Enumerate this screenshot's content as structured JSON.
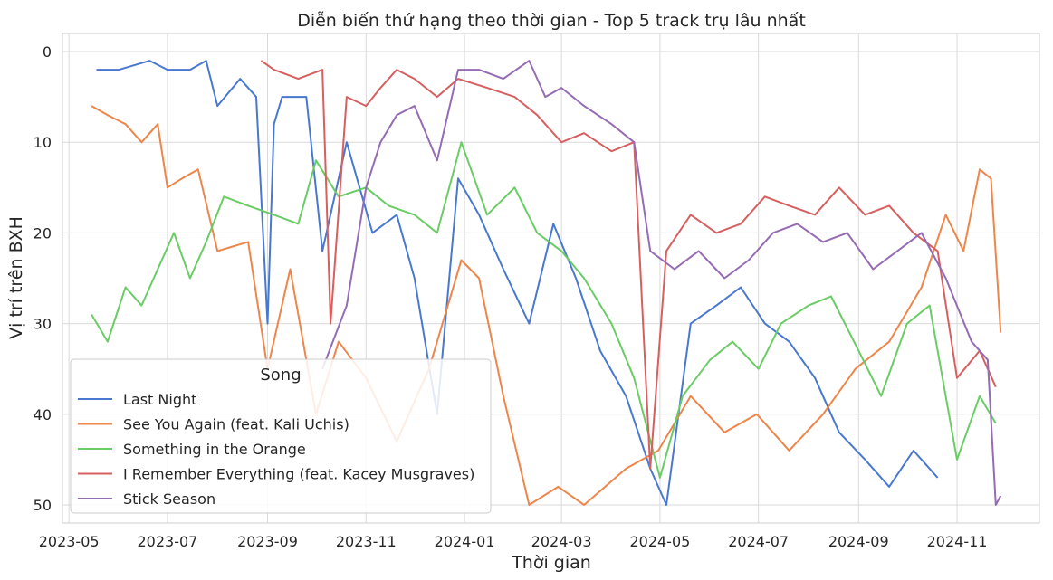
{
  "chart_data": {
    "type": "line",
    "title": "Diễn biến thứ hạng theo thời gian - Top 5 track trụ lâu nhất",
    "xlabel": "Thời gian",
    "ylabel": "Vị trí trên BXH",
    "x_range": [
      "2023-04-27",
      "2024-12-22"
    ],
    "ylim": [
      52,
      -2
    ],
    "y_inverted": true,
    "grid": true,
    "x_ticks": [
      "2023-05",
      "2023-07",
      "2023-09",
      "2023-11",
      "2024-01",
      "2024-03",
      "2024-05",
      "2024-07",
      "2024-09",
      "2024-11"
    ],
    "y_ticks": [
      0,
      10,
      20,
      30,
      40,
      50
    ],
    "legend": {
      "title": "Song",
      "placement": "lower-left"
    },
    "series": [
      {
        "name": "Last Night",
        "color": "#4878d0",
        "points": [
          [
            "2023-05-18",
            2
          ],
          [
            "2023-06-01",
            2
          ],
          [
            "2023-06-20",
            1
          ],
          [
            "2023-07-01",
            2
          ],
          [
            "2023-07-15",
            2
          ],
          [
            "2023-07-25",
            1
          ],
          [
            "2023-08-01",
            6
          ],
          [
            "2023-08-15",
            3
          ],
          [
            "2023-08-25",
            5
          ],
          [
            "2023-09-01",
            30
          ],
          [
            "2023-09-05",
            8
          ],
          [
            "2023-09-10",
            5
          ],
          [
            "2023-09-25",
            5
          ],
          [
            "2023-10-05",
            22
          ],
          [
            "2023-10-20",
            10
          ],
          [
            "2023-11-05",
            20
          ],
          [
            "2023-11-20",
            18
          ],
          [
            "2023-12-01",
            25
          ],
          [
            "2023-12-15",
            40
          ],
          [
            "2023-12-28",
            14
          ],
          [
            "2024-01-10",
            18
          ],
          [
            "2024-01-25",
            24
          ],
          [
            "2024-02-10",
            30
          ],
          [
            "2024-02-25",
            19
          ],
          [
            "2024-03-10",
            25
          ],
          [
            "2024-03-25",
            33
          ],
          [
            "2024-04-10",
            38
          ],
          [
            "2024-04-25",
            46
          ],
          [
            "2024-05-05",
            50
          ],
          [
            "2024-05-20",
            30
          ],
          [
            "2024-06-05",
            28
          ],
          [
            "2024-06-20",
            26
          ],
          [
            "2024-07-05",
            30
          ],
          [
            "2024-07-20",
            32
          ],
          [
            "2024-08-05",
            36
          ],
          [
            "2024-08-20",
            42
          ],
          [
            "2024-09-05",
            45
          ],
          [
            "2024-09-20",
            48
          ],
          [
            "2024-10-05",
            44
          ],
          [
            "2024-10-20",
            47
          ]
        ]
      },
      {
        "name": "See You Again (feat. Kali Uchis)",
        "color": "#ee854a",
        "points": [
          [
            "2023-05-15",
            6
          ],
          [
            "2023-05-25",
            7
          ],
          [
            "2023-06-05",
            8
          ],
          [
            "2023-06-15",
            10
          ],
          [
            "2023-06-25",
            8
          ],
          [
            "2023-07-01",
            15
          ],
          [
            "2023-07-10",
            14
          ],
          [
            "2023-07-20",
            13
          ],
          [
            "2023-08-01",
            22
          ],
          [
            "2023-08-20",
            21
          ],
          [
            "2023-09-01",
            35
          ],
          [
            "2023-09-15",
            24
          ],
          [
            "2023-10-01",
            40
          ],
          [
            "2023-10-15",
            32
          ],
          [
            "2023-11-01",
            36
          ],
          [
            "2023-11-20",
            43
          ],
          [
            "2023-12-10",
            35
          ],
          [
            "2023-12-30",
            23
          ],
          [
            "2024-01-10",
            25
          ],
          [
            "2024-01-25",
            38
          ],
          [
            "2024-02-10",
            50
          ],
          [
            "2024-02-28",
            48
          ],
          [
            "2024-03-15",
            50
          ],
          [
            "2024-04-10",
            46
          ],
          [
            "2024-04-30",
            44
          ],
          [
            "2024-05-20",
            38
          ],
          [
            "2024-06-10",
            42
          ],
          [
            "2024-06-30",
            40
          ],
          [
            "2024-07-20",
            44
          ],
          [
            "2024-08-10",
            40
          ],
          [
            "2024-08-30",
            35
          ],
          [
            "2024-09-20",
            32
          ],
          [
            "2024-10-10",
            26
          ],
          [
            "2024-10-25",
            18
          ],
          [
            "2024-11-05",
            22
          ],
          [
            "2024-11-15",
            13
          ],
          [
            "2024-11-22",
            14
          ],
          [
            "2024-11-28",
            31
          ]
        ]
      },
      {
        "name": "Something in the Orange",
        "color": "#6acc64",
        "points": [
          [
            "2023-05-15",
            29
          ],
          [
            "2023-05-25",
            32
          ],
          [
            "2023-06-05",
            26
          ],
          [
            "2023-06-15",
            28
          ],
          [
            "2023-06-25",
            24
          ],
          [
            "2023-07-05",
            20
          ],
          [
            "2023-07-15",
            25
          ],
          [
            "2023-07-25",
            21
          ],
          [
            "2023-08-05",
            16
          ],
          [
            "2023-08-20",
            17
          ],
          [
            "2023-09-05",
            18
          ],
          [
            "2023-09-20",
            19
          ],
          [
            "2023-10-01",
            12
          ],
          [
            "2023-10-15",
            16
          ],
          [
            "2023-11-01",
            15
          ],
          [
            "2023-11-15",
            17
          ],
          [
            "2023-12-01",
            18
          ],
          [
            "2023-12-15",
            20
          ],
          [
            "2023-12-30",
            10
          ],
          [
            "2024-01-15",
            18
          ],
          [
            "2024-02-01",
            15
          ],
          [
            "2024-02-15",
            20
          ],
          [
            "2024-03-01",
            22
          ],
          [
            "2024-03-15",
            25
          ],
          [
            "2024-04-01",
            30
          ],
          [
            "2024-04-15",
            36
          ],
          [
            "2024-05-01",
            47
          ],
          [
            "2024-05-15",
            38
          ],
          [
            "2024-06-01",
            34
          ],
          [
            "2024-06-15",
            32
          ],
          [
            "2024-07-01",
            35
          ],
          [
            "2024-07-15",
            30
          ],
          [
            "2024-08-01",
            28
          ],
          [
            "2024-08-15",
            27
          ],
          [
            "2024-09-01",
            33
          ],
          [
            "2024-09-15",
            38
          ],
          [
            "2024-10-01",
            30
          ],
          [
            "2024-10-15",
            28
          ],
          [
            "2024-11-01",
            45
          ],
          [
            "2024-11-15",
            38
          ],
          [
            "2024-11-25",
            41
          ]
        ]
      },
      {
        "name": "I Remember Everything (feat. Kacey Musgraves)",
        "color": "#d65f5f",
        "points": [
          [
            "2023-08-28",
            1
          ],
          [
            "2023-09-05",
            2
          ],
          [
            "2023-09-20",
            3
          ],
          [
            "2023-10-05",
            2
          ],
          [
            "2023-10-10",
            30
          ],
          [
            "2023-10-20",
            5
          ],
          [
            "2023-11-01",
            6
          ],
          [
            "2023-11-10",
            4
          ],
          [
            "2023-11-20",
            2
          ],
          [
            "2023-12-01",
            3
          ],
          [
            "2023-12-15",
            5
          ],
          [
            "2023-12-28",
            3
          ],
          [
            "2024-01-15",
            4
          ],
          [
            "2024-02-01",
            5
          ],
          [
            "2024-02-15",
            7
          ],
          [
            "2024-03-01",
            10
          ],
          [
            "2024-03-15",
            9
          ],
          [
            "2024-04-01",
            11
          ],
          [
            "2024-04-15",
            10
          ],
          [
            "2024-04-25",
            46
          ],
          [
            "2024-05-05",
            22
          ],
          [
            "2024-05-20",
            18
          ],
          [
            "2024-06-05",
            20
          ],
          [
            "2024-06-20",
            19
          ],
          [
            "2024-07-05",
            16
          ],
          [
            "2024-07-20",
            17
          ],
          [
            "2024-08-05",
            18
          ],
          [
            "2024-08-20",
            15
          ],
          [
            "2024-09-05",
            18
          ],
          [
            "2024-09-20",
            17
          ],
          [
            "2024-10-05",
            20
          ],
          [
            "2024-10-20",
            22
          ],
          [
            "2024-11-01",
            36
          ],
          [
            "2024-11-15",
            33
          ],
          [
            "2024-11-25",
            37
          ]
        ]
      },
      {
        "name": "Stick Season",
        "color": "#956cb4",
        "points": [
          [
            "2023-10-05",
            35
          ],
          [
            "2023-10-20",
            28
          ],
          [
            "2023-11-01",
            15
          ],
          [
            "2023-11-10",
            10
          ],
          [
            "2023-11-20",
            7
          ],
          [
            "2023-12-01",
            6
          ],
          [
            "2023-12-15",
            12
          ],
          [
            "2023-12-28",
            2
          ],
          [
            "2024-01-10",
            2
          ],
          [
            "2024-01-25",
            3
          ],
          [
            "2024-02-10",
            1
          ],
          [
            "2024-02-20",
            5
          ],
          [
            "2024-03-01",
            4
          ],
          [
            "2024-03-15",
            6
          ],
          [
            "2024-04-01",
            8
          ],
          [
            "2024-04-15",
            10
          ],
          [
            "2024-04-25",
            22
          ],
          [
            "2024-05-10",
            24
          ],
          [
            "2024-05-25",
            22
          ],
          [
            "2024-06-10",
            25
          ],
          [
            "2024-06-25",
            23
          ],
          [
            "2024-07-10",
            20
          ],
          [
            "2024-07-25",
            19
          ],
          [
            "2024-08-10",
            21
          ],
          [
            "2024-08-25",
            20
          ],
          [
            "2024-09-10",
            24
          ],
          [
            "2024-09-25",
            22
          ],
          [
            "2024-10-10",
            20
          ],
          [
            "2024-10-25",
            25
          ],
          [
            "2024-11-10",
            32
          ],
          [
            "2024-11-20",
            34
          ],
          [
            "2024-11-25",
            50
          ],
          [
            "2024-11-28",
            49
          ]
        ]
      }
    ]
  }
}
